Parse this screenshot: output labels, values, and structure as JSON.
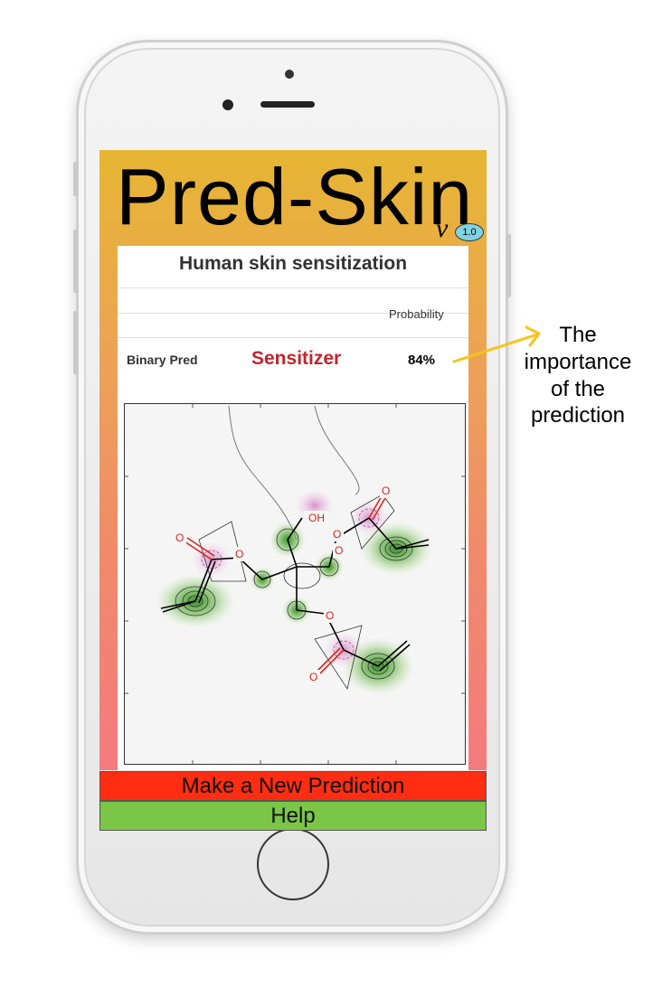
{
  "app": {
    "title": "Pred-Skin",
    "version_prefix": "ν",
    "version": "1.0"
  },
  "panel": {
    "title": "Human skin sensitization",
    "column_header": "Probability",
    "row": {
      "label": "Binary Pred",
      "prediction": "Sensitizer",
      "probability": "84%"
    }
  },
  "molecule": {
    "atom_labels": [
      "OH",
      "O",
      "O",
      "O",
      "O",
      "O",
      "O",
      "O"
    ]
  },
  "buttons": {
    "new_prediction": "Make a New Prediction",
    "help": "Help"
  },
  "annotation": {
    "lines": [
      "The",
      "importance",
      "of the",
      "prediction"
    ]
  },
  "colors": {
    "sensitizer": "#c0262e",
    "new_prediction_button": "#ff2d11",
    "help_button": "#7bc646",
    "arrow": "#f5c518"
  }
}
